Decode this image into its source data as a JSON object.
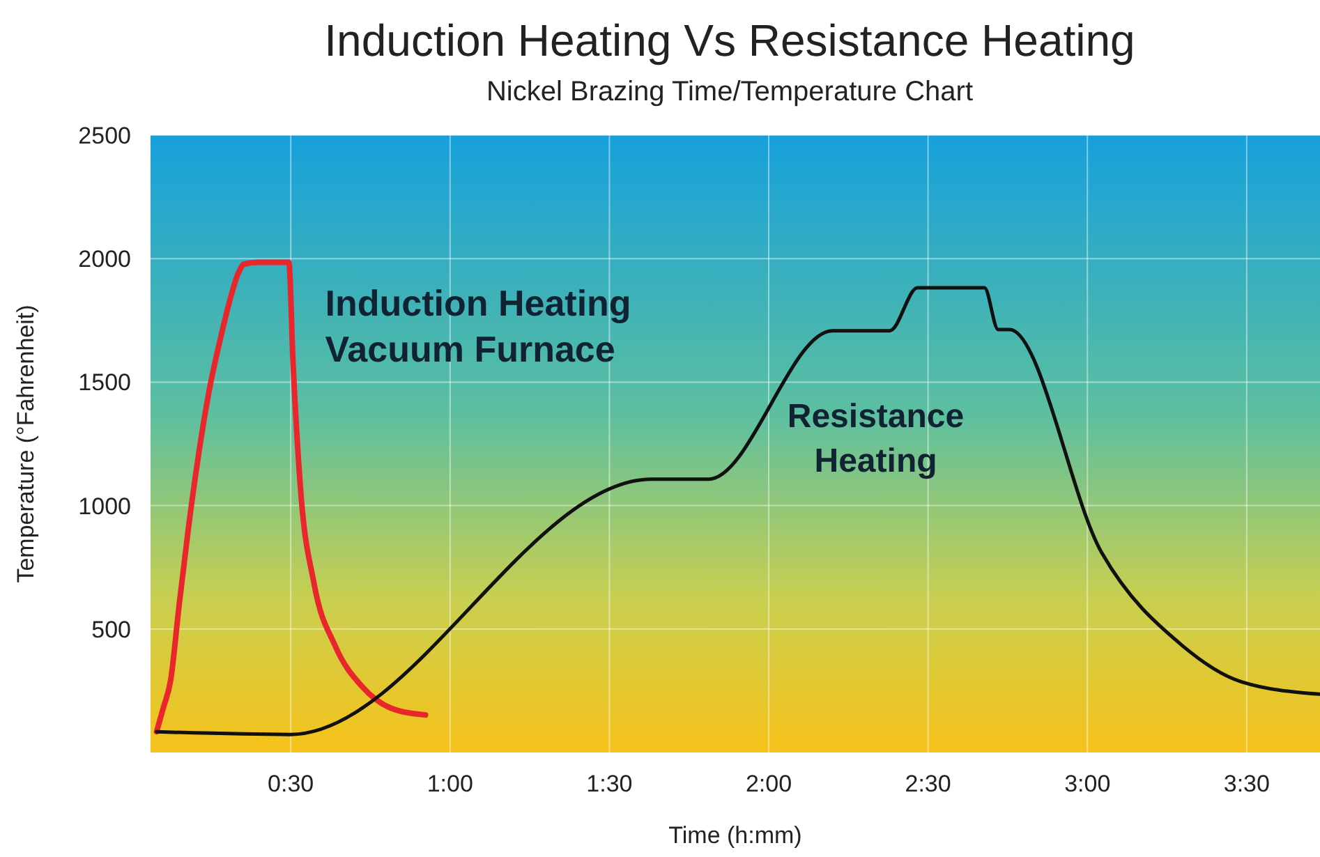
{
  "chart_data": {
    "type": "line",
    "title": "Induction Heating Vs Resistance Heating",
    "subtitle": "Nickel Brazing Time/Temperature Chart",
    "xlabel": "Time (h:mm)",
    "ylabel": "Temperature (°Fahrenheit)",
    "xlim": [
      0.06,
      3.73
    ],
    "ylim": [
      0,
      2500
    ],
    "xticks": [
      {
        "value": 0.5,
        "label": "0:30"
      },
      {
        "value": 1,
        "label": "1:00"
      },
      {
        "value": 1.5,
        "label": "1:30"
      },
      {
        "value": 2,
        "label": "2:00"
      },
      {
        "value": 2.5,
        "label": "2:30"
      },
      {
        "value": 3,
        "label": "3:00"
      },
      {
        "value": 3.5,
        "label": "3:30"
      }
    ],
    "yticks": [
      500,
      1000,
      1500,
      2000,
      2500
    ],
    "grid": true,
    "marker": "none",
    "line_style": "solid",
    "series": [
      {
        "name": "Induction Heating Vacuum Furnace",
        "color": "#e8262b",
        "x": [
          0.079,
          0.1,
          0.123,
          0.15,
          0.179,
          0.21,
          0.245,
          0.28,
          0.31,
          0.335,
          0.354,
          0.398,
          0.494,
          0.507,
          0.53,
          0.573,
          0.639,
          0.726,
          0.814,
          0.923
        ],
        "values": [
          84,
          180,
          292,
          600,
          910,
          1200,
          1472,
          1680,
          1837,
          1940,
          1978,
          1985,
          1985,
          1584,
          1079,
          685,
          433,
          264,
          180,
          152
        ]
      },
      {
        "name": "Resistance Heating",
        "color": "#111111",
        "x": [
          0.079,
          0.499,
          1.632,
          1.811,
          2.2,
          2.38,
          2.467,
          2.677,
          2.72,
          2.756,
          3.045,
          3.298,
          3.482,
          3.73
        ],
        "values": [
          84,
          73,
          1107,
          1107,
          1708,
          1708,
          1882,
          1882,
          1713,
          1713,
          809,
          433,
          287,
          236
        ]
      }
    ]
  }
}
